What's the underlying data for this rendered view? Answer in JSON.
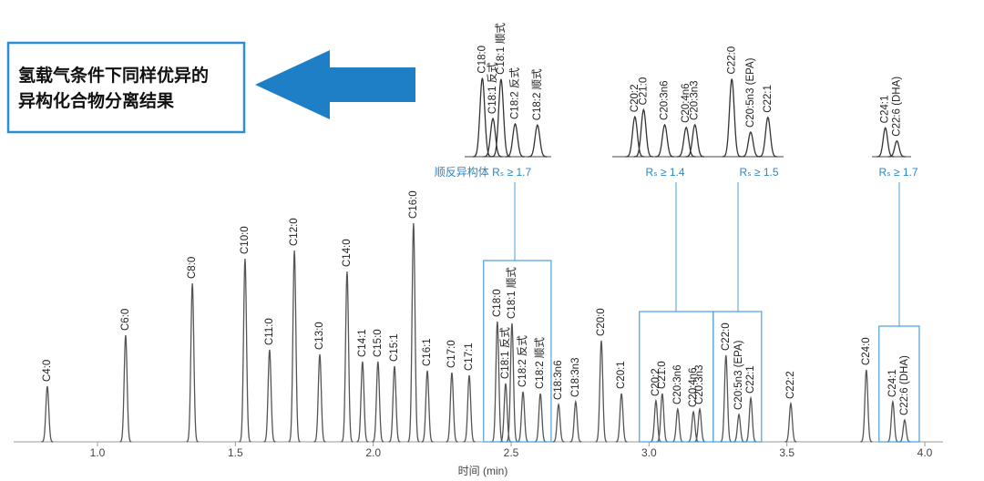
{
  "callout_lines": [
    "氢载气条件下同样优异的",
    "异构化合物分离结果"
  ],
  "chart_data": [
    {
      "type": "chromatogram",
      "xlabel": "时间 (min)",
      "xlim": [
        0.696,
        4.066
      ],
      "ylim": [
        0,
        100
      ],
      "xticks": [
        {
          "value": 1,
          "label": "1.0"
        },
        {
          "value": 1.5,
          "label": "1.5"
        },
        {
          "value": 2,
          "label": "2.0"
        },
        {
          "value": 2.5,
          "label": "2.5"
        },
        {
          "value": 3,
          "label": "3.0"
        },
        {
          "value": 3.5,
          "label": "3.5"
        },
        {
          "value": 4,
          "label": "4.0"
        }
      ],
      "color": "#555555",
      "categories": [
        "C4:0",
        "C6:0",
        "C8:0",
        "C10:0",
        "C11:0",
        "C12:0",
        "C13:0",
        "C14:0",
        "C14:1",
        "C15:0",
        "C15:1",
        "C16:0",
        "C16:1",
        "C17:0",
        "C17:1",
        "C18:0",
        "C18:1 反式",
        "C18:1 顺式",
        "C18:2 反式",
        "C18:2 顺式",
        "C18:3n6",
        "C18:3n3",
        "C20:0",
        "C20:1",
        "C20:2",
        "C21:0",
        "C20:3n6",
        "C20:4n6",
        "C20:3n3",
        "C22:0",
        "C20:5n3 (EPA)",
        "C22:1",
        "C22:2",
        "C24:0",
        "C24:1",
        "C22:6 (DHA)"
      ],
      "x": [
        0.818,
        1.102,
        1.344,
        1.535,
        1.624,
        1.714,
        1.806,
        1.905,
        1.961,
        2.017,
        2.077,
        2.146,
        2.196,
        2.285,
        2.348,
        2.45,
        2.48,
        2.503,
        2.543,
        2.606,
        2.672,
        2.734,
        2.827,
        2.9,
        3.025,
        3.048,
        3.104,
        3.161,
        3.184,
        3.279,
        3.326,
        3.369,
        3.514,
        3.788,
        3.884,
        3.927
      ],
      "values": [
        24.4,
        46.8,
        69.6,
        80.4,
        40.4,
        84,
        38.4,
        74.8,
        35.2,
        35.2,
        33.2,
        96,
        31.2,
        30.4,
        29.2,
        52.8,
        25.6,
        52,
        22,
        21.2,
        16.4,
        17.6,
        44.4,
        21.2,
        18,
        21.2,
        14.4,
        13.2,
        14.4,
        38,
        12,
        19.2,
        16.8,
        31.6,
        17.6,
        9.6
      ]
    },
    {
      "type": "chromatogram",
      "annotation": "顺反异构体 Rₛ ≥ 1.7",
      "color": "#333333",
      "xlim": [
        2.4,
        2.645
      ],
      "ylim": [
        0,
        55
      ],
      "categories": [
        "C18:0",
        "C18:1 反式",
        "C18:1 顺式",
        "C18:2 反式",
        "C18:2 顺式"
      ],
      "x": [
        2.45,
        2.48,
        2.503,
        2.543,
        2.606
      ],
      "values": [
        52.8,
        25.6,
        52,
        22,
        21.2
      ]
    },
    {
      "type": "chromatogram",
      "annotation": "Rₛ ≥ 1.4",
      "color": "#333333",
      "xlim": [
        2.965,
        3.233
      ],
      "ylim": [
        0,
        37
      ],
      "categories": [
        "C20:2",
        "C21:0",
        "C20:3n6",
        "C20:4n6",
        "C20:3n3"
      ],
      "x": [
        3.025,
        3.048,
        3.104,
        3.161,
        3.184
      ],
      "values": [
        18,
        21.2,
        14.4,
        13.2,
        14.4
      ]
    },
    {
      "type": "chromatogram",
      "annotation": "Rₛ ≥ 1.5",
      "color": "#333333",
      "xlim": [
        3.233,
        3.408
      ],
      "ylim": [
        0,
        40
      ],
      "categories": [
        "C22:0",
        "C20:5n3 (EPA)",
        "C22:1"
      ],
      "x": [
        3.279,
        3.326,
        3.369
      ],
      "values": [
        38,
        12,
        19.2
      ]
    },
    {
      "type": "chromatogram",
      "annotation": "Rₛ ≥ 1.7",
      "color": "#333333",
      "xlim": [
        3.834,
        3.98
      ],
      "ylim": [
        0,
        50
      ],
      "categories": [
        "C24:1",
        "C22:6 (DHA)"
      ],
      "x": [
        3.884,
        3.927
      ],
      "values": [
        17.6,
        9.6
      ]
    }
  ]
}
